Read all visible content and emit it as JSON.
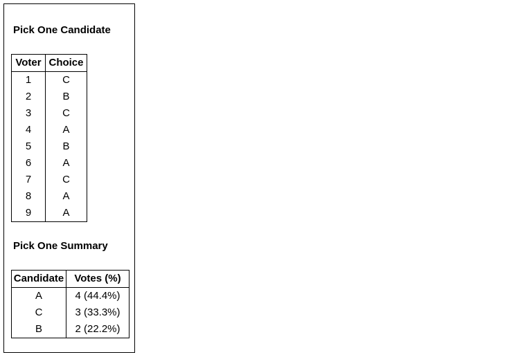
{
  "ballot": {
    "title": "Pick One Candidate",
    "columns": [
      "Voter",
      "Choice"
    ],
    "rows": [
      {
        "voter": "1",
        "choice": "C"
      },
      {
        "voter": "2",
        "choice": "B"
      },
      {
        "voter": "3",
        "choice": "C"
      },
      {
        "voter": "4",
        "choice": "A"
      },
      {
        "voter": "5",
        "choice": "B"
      },
      {
        "voter": "6",
        "choice": "A"
      },
      {
        "voter": "7",
        "choice": "C"
      },
      {
        "voter": "8",
        "choice": "A"
      },
      {
        "voter": "9",
        "choice": "A"
      }
    ]
  },
  "summary": {
    "title": "Pick One Summary",
    "columns": [
      "Candidate",
      "Votes (%)"
    ],
    "rows": [
      {
        "candidate": "A",
        "votes": "4 (44.4%)"
      },
      {
        "candidate": "C",
        "votes": "3 (33.3%)"
      },
      {
        "candidate": "B",
        "votes": "2 (22.2%)"
      }
    ]
  }
}
